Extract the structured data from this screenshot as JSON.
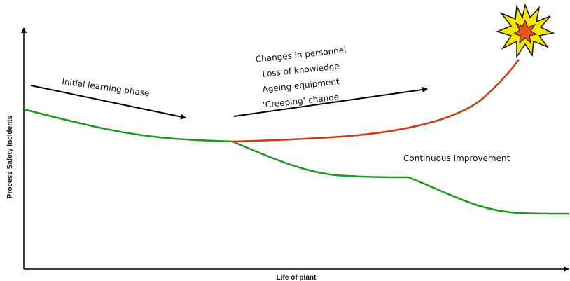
{
  "axes": {
    "y_label": "Process Safety Incidents",
    "x_label": "Life of plant"
  },
  "annotations": {
    "initial_learning": "Initial learning phase",
    "changes": [
      "Changes in personnel",
      "Loss of knowledge",
      "Ageing equipment",
      "‘Creeping’ change"
    ],
    "continuous_improvement": "Continuous Improvement"
  },
  "colors": {
    "green_curve": "#1a9a1a",
    "red_curve": "#cc3a10",
    "axis": "#000000",
    "explosion_outer": "#f7e600",
    "explosion_inner": "#e8541a"
  }
}
